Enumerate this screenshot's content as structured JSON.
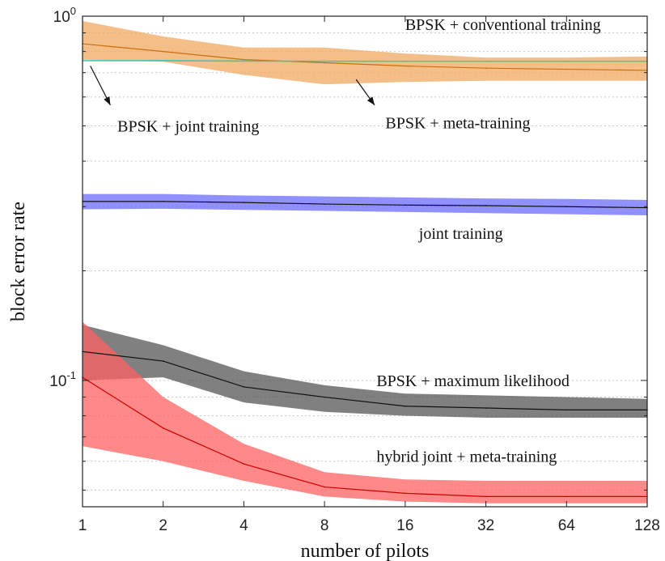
{
  "chart_data": {
    "type": "line",
    "title": "",
    "xlabel": "number of pilots",
    "ylabel": "block error rate",
    "x": [
      1,
      2,
      4,
      8,
      16,
      32,
      64,
      128
    ],
    "x_tick_labels": [
      "1",
      "2",
      "4",
      "8",
      "16",
      "32",
      "64",
      "128"
    ],
    "x_scale": "log2",
    "xlim": [
      1,
      128
    ],
    "y_scale": "log",
    "ylim": [
      0.045,
      1.0
    ],
    "y_ticks": [
      {
        "value": 1.0,
        "base": "10",
        "exp": "0"
      },
      {
        "value": 0.1,
        "base": "10",
        "exp": "-1"
      }
    ],
    "grid": true,
    "legend": "none",
    "series": [
      {
        "color": "#f0a860",
        "line_color": "#c87010",
        "values": [
          0.84,
          0.8,
          0.76,
          0.745,
          0.73,
          0.72,
          0.715,
          0.71
        ],
        "lower": [
          0.76,
          0.75,
          0.69,
          0.65,
          0.66,
          0.665,
          0.665,
          0.665
        ],
        "upper": [
          0.97,
          0.88,
          0.82,
          0.82,
          0.79,
          0.77,
          0.77,
          0.775
        ]
      },
      {
        "color": "#30c8b8",
        "line_color": "#30c8b8",
        "values": [
          0.755,
          0.755,
          0.753,
          0.752,
          0.752,
          0.752,
          0.752,
          0.752
        ],
        "lower": [
          0.752,
          0.752,
          0.75,
          0.75,
          0.75,
          0.75,
          0.75,
          0.75
        ],
        "upper": [
          0.758,
          0.758,
          0.756,
          0.755,
          0.755,
          0.755,
          0.755,
          0.755
        ]
      },
      {
        "color": "#6b6bff",
        "line_color": "#111111",
        "values": [
          0.31,
          0.31,
          0.308,
          0.305,
          0.303,
          0.302,
          0.3,
          0.298
        ],
        "lower": [
          0.295,
          0.296,
          0.294,
          0.292,
          0.29,
          0.288,
          0.286,
          0.284
        ],
        "upper": [
          0.325,
          0.325,
          0.322,
          0.32,
          0.318,
          0.316,
          0.315,
          0.313
        ]
      },
      {
        "color": "#555555",
        "line_color": "#111111",
        "values": [
          0.12,
          0.113,
          0.096,
          0.09,
          0.085,
          0.084,
          0.083,
          0.083
        ],
        "lower": [
          0.1,
          0.102,
          0.087,
          0.082,
          0.08,
          0.079,
          0.079,
          0.079
        ],
        "upper": [
          0.142,
          0.125,
          0.106,
          0.097,
          0.092,
          0.091,
          0.09,
          0.089
        ]
      },
      {
        "color": "#ff6060",
        "line_color": "#cc0000",
        "values": [
          0.102,
          0.074,
          0.059,
          0.051,
          0.049,
          0.048,
          0.048,
          0.048
        ],
        "lower": [
          0.066,
          0.06,
          0.053,
          0.048,
          0.0465,
          0.046,
          0.046,
          0.046
        ],
        "upper": [
          0.145,
          0.09,
          0.067,
          0.056,
          0.0535,
          0.053,
          0.053,
          0.053
        ]
      }
    ],
    "annotations": [
      {
        "text": "BPSK + conventional training",
        "x": 16,
        "y": 0.95
      },
      {
        "text": "BPSK + joint training",
        "x": 1.35,
        "y": 0.5
      },
      {
        "text": "BPSK + meta-training",
        "x": 13.5,
        "y": 0.51
      },
      {
        "text": "joint training",
        "x": 18,
        "y": 0.254
      },
      {
        "text": "BPSK + maximum likelihood",
        "x": 12.5,
        "y": 0.1
      },
      {
        "text": "hybrid joint + meta-training",
        "x": 12.5,
        "y": 0.062
      }
    ],
    "arrows": [
      {
        "from": [
          1.07,
          0.73
        ],
        "to": [
          1.27,
          0.57
        ]
      },
      {
        "from": [
          10.5,
          0.67
        ],
        "to": [
          12.3,
          0.57
        ]
      }
    ]
  }
}
